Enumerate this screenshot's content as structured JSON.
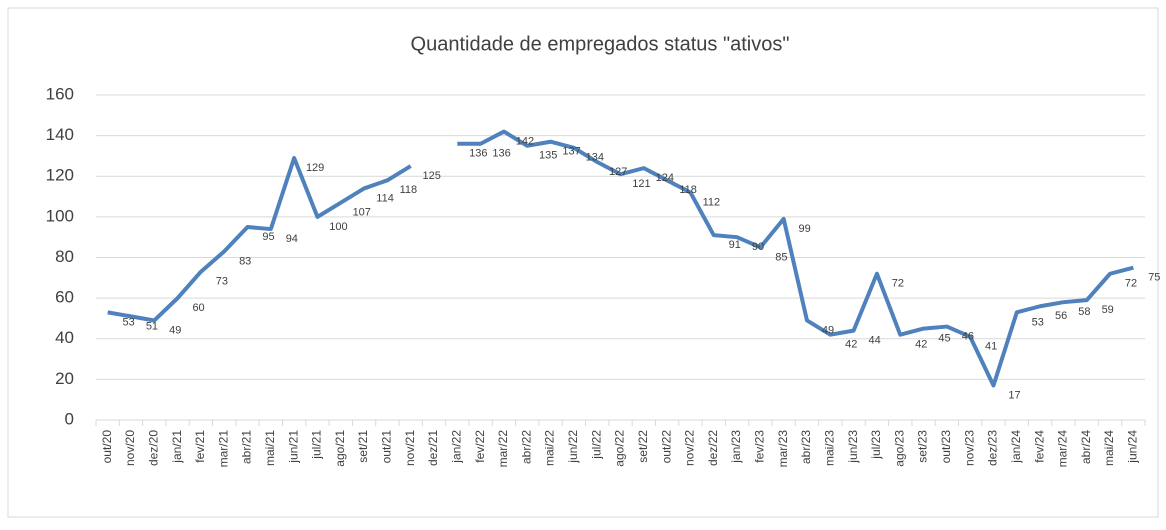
{
  "chart_data": {
    "type": "line",
    "title": "Quantidade de empregados status \"ativos\"",
    "categories": [
      "out/20",
      "nov/20",
      "dez/20",
      "jan/21",
      "fev/21",
      "mar/21",
      "abr/21",
      "mai/21",
      "jun/21",
      "jul/21",
      "ago/21",
      "set/21",
      "out/21",
      "nov/21",
      "dez/21",
      "jan/22",
      "fev/22",
      "mar/22",
      "abr/22",
      "mai/22",
      "jun/22",
      "jul/22",
      "ago/22",
      "set/22",
      "out/22",
      "nov/22",
      "dez/22",
      "jan/23",
      "fev/23",
      "mar/23",
      "abr/23",
      "mai/23",
      "jun/23",
      "jul/23",
      "ago/23",
      "set/23",
      "out/23",
      "nov/23",
      "dez/23",
      "jan/24",
      "fev/24",
      "mar/24",
      "abr/24",
      "mai/24",
      "jun/24"
    ],
    "series": [
      {
        "name": "ativos",
        "color": "#4f81bd",
        "values": [
          53,
          51,
          49,
          60,
          73,
          83,
          95,
          94,
          129,
          100,
          107,
          114,
          118,
          125,
          null,
          136,
          136,
          142,
          135,
          137,
          134,
          127,
          121,
          124,
          118,
          112,
          91,
          90,
          85,
          99,
          49,
          42,
          44,
          72,
          42,
          45,
          46,
          41,
          17,
          53,
          56,
          58,
          59,
          72,
          75
        ]
      }
    ],
    "ylim": [
      0,
      160
    ],
    "yticks": [
      0,
      20,
      40,
      60,
      80,
      100,
      120,
      140,
      160
    ],
    "grid": true
  }
}
